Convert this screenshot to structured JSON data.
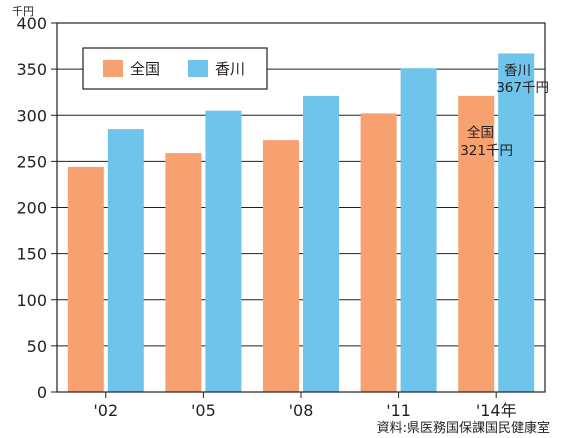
{
  "chart_data": {
    "type": "bar",
    "categories": [
      "'02",
      "'05",
      "'08",
      "'11",
      "'14年"
    ],
    "series": [
      {
        "name": "全国",
        "color": "#f7a170",
        "values": [
          244,
          259,
          273,
          302,
          321
        ]
      },
      {
        "name": "香川",
        "color": "#6ec4ea",
        "values": [
          285,
          305,
          321,
          351,
          367
        ]
      }
    ],
    "ylim": [
      0,
      400
    ],
    "yticks": [
      0,
      50,
      100,
      150,
      200,
      250,
      300,
      350,
      400
    ],
    "ylabel": "千円",
    "grid": true,
    "legend": "top-left",
    "annotations": [
      {
        "series": "香川",
        "line1": "香川",
        "line2": "367千円"
      },
      {
        "series": "全国",
        "line1": "全国",
        "line2": "321千円"
      }
    ],
    "source": "資料:県医務国保課国民健康室"
  }
}
